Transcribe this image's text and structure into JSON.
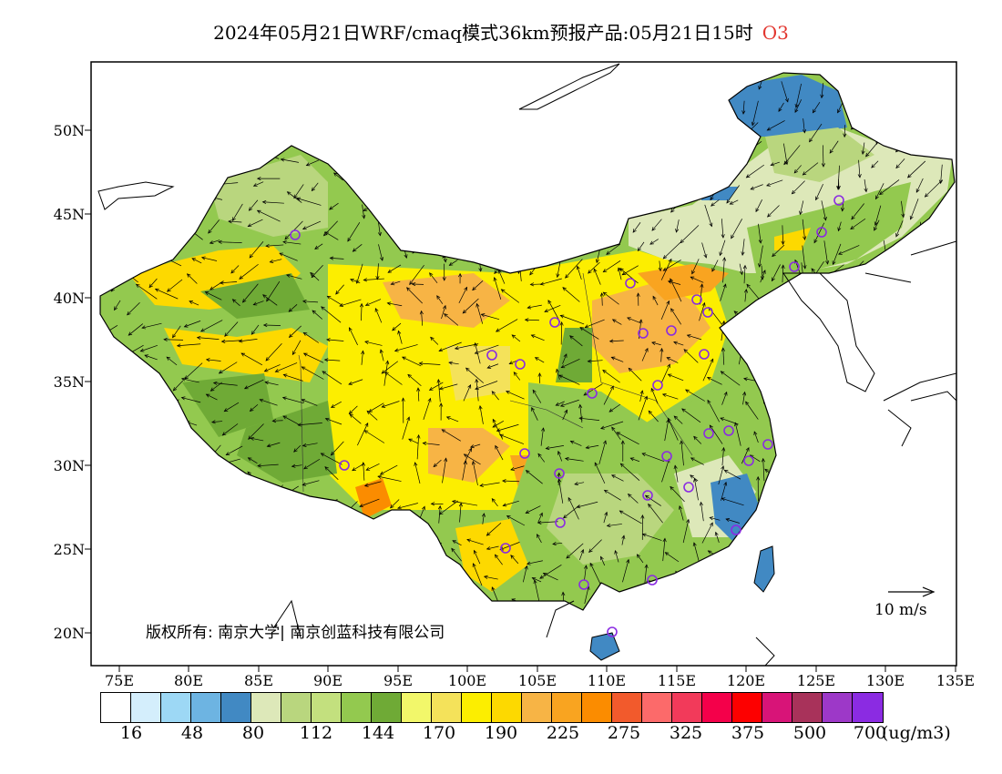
{
  "title": {
    "main": "2024年05月21日WRF/cmaq模式36km预报产品:05月21日15时",
    "variable": "O3"
  },
  "axes": {
    "lat_labels": [
      "50N",
      "45N",
      "40N",
      "35N",
      "30N",
      "25N",
      "20N"
    ],
    "lon_labels": [
      "75E",
      "80E",
      "85E",
      "90E",
      "95E",
      "100E",
      "105E",
      "110E",
      "115E",
      "120E",
      "125E",
      "130E",
      "135E"
    ]
  },
  "credit": "版权所有: 南京大学| 南京创蓝科技有限公司",
  "wind_reference": "10 m/s",
  "colorbar": {
    "colors": [
      "#ffffff",
      "#d4eefc",
      "#9dd8f5",
      "#6db4e2",
      "#4189c3",
      "#dde8b9",
      "#b9d67e",
      "#c3e07e",
      "#93c94f",
      "#6faa36",
      "#f2f76a",
      "#f4e25a",
      "#fcee00",
      "#fdd900",
      "#f7b445",
      "#f9a420",
      "#fb8c00",
      "#f25a2c",
      "#fc6a6a",
      "#f23a5a",
      "#f4004a",
      "#fd0000",
      "#d81478",
      "#a8325a",
      "#9d38c8",
      "#8b2be2"
    ],
    "labels": [
      "16",
      "48",
      "80",
      "112",
      "144",
      "170",
      "190",
      "225",
      "275",
      "325",
      "375",
      "500",
      "700"
    ],
    "unit": "(ug/m3)"
  },
  "stations_count_shown": 38
}
